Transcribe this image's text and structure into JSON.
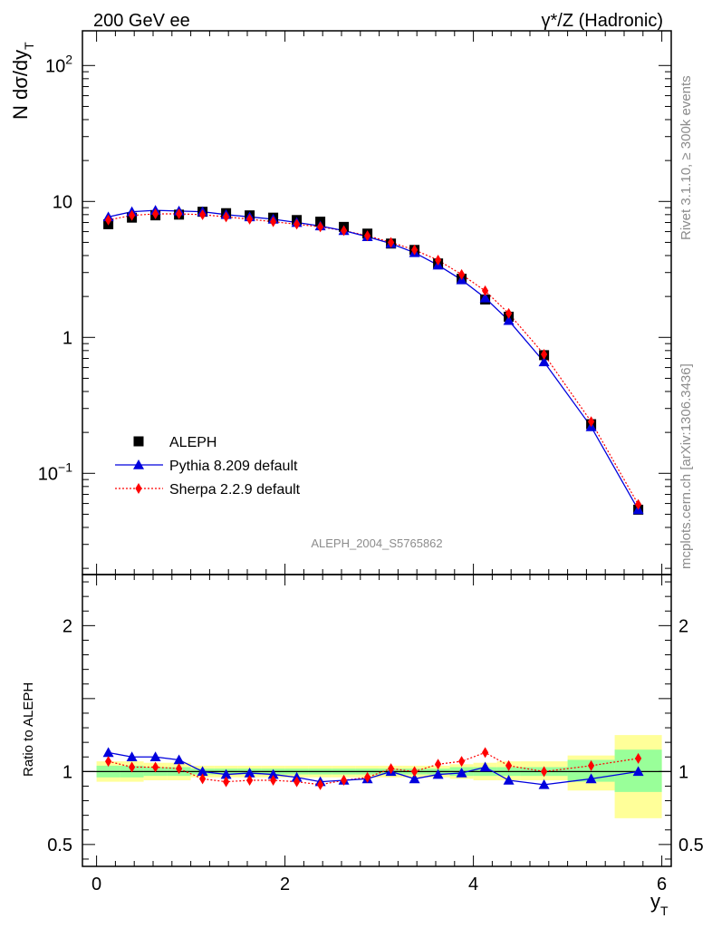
{
  "chart_data": {
    "type": "line",
    "title_left": "200 GeV ee",
    "title_right": "γ*/Z (Hadronic)",
    "ylabel_main": "N dσ/dy",
    "ylabel_main_sub": "T",
    "ylabel_ratio": "Ratio to ALEPH",
    "xlabel": "y",
    "xlabel_sub": "T",
    "watermark": "ALEPH_2004_S5765862",
    "side_text_top": "Rivet 3.1.10, ≥ 300k events",
    "side_text_bottom": "mcplots.cern.ch [arXiv:1306.3436]",
    "xlim": [
      -0.15,
      6.1
    ],
    "ylim_main": [
      0.018,
      180
    ],
    "ylim_ratio": [
      0.35,
      2.35
    ],
    "x_ticks": [
      "0",
      "2",
      "4",
      "6"
    ],
    "y_ticks_main": [
      {
        "value": 0.1,
        "base": "10",
        "exp": "−1"
      },
      {
        "value": 1,
        "base": "1",
        "exp": ""
      },
      {
        "value": 10,
        "base": "10",
        "exp": ""
      },
      {
        "value": 100,
        "base": "10",
        "exp": "2"
      }
    ],
    "y_ticks_ratio": [
      "0.5",
      "1",
      "2"
    ],
    "x": [
      0.125,
      0.375,
      0.625,
      0.875,
      1.125,
      1.375,
      1.625,
      1.875,
      2.125,
      2.375,
      2.625,
      2.875,
      3.125,
      3.375,
      3.625,
      3.875,
      4.125,
      4.375,
      4.75,
      5.25,
      5.75
    ],
    "bin_edges": [
      0,
      0.25,
      0.5,
      0.75,
      1.0,
      1.25,
      1.5,
      1.75,
      2.0,
      2.25,
      2.5,
      2.75,
      3.0,
      3.25,
      3.5,
      3.75,
      4.0,
      4.25,
      4.5,
      5.0,
      5.5,
      6.0
    ],
    "series": [
      {
        "name": "ALEPH",
        "color": "#000000",
        "marker": "square",
        "values": [
          6.8,
          7.6,
          7.9,
          8.0,
          8.4,
          8.2,
          7.9,
          7.6,
          7.3,
          7.1,
          6.5,
          5.8,
          4.9,
          4.4,
          3.5,
          2.7,
          1.9,
          1.42,
          0.74,
          0.23,
          0.054
        ]
      },
      {
        "name": "Pythia 8.209 default",
        "color": "#0000dd",
        "marker": "triangle",
        "values": [
          7.7,
          8.4,
          8.6,
          8.5,
          8.4,
          8.0,
          7.7,
          7.4,
          7.0,
          6.6,
          6.1,
          5.5,
          4.9,
          4.2,
          3.4,
          2.65,
          1.95,
          1.33,
          0.66,
          0.22,
          0.054
        ]
      },
      {
        "name": "Sherpa 2.2.9 default",
        "color": "#ff0000",
        "marker": "diamond",
        "values": [
          7.3,
          7.9,
          8.1,
          8.1,
          8.0,
          7.7,
          7.4,
          7.1,
          6.8,
          6.5,
          6.1,
          5.6,
          5.0,
          4.4,
          3.7,
          2.9,
          2.2,
          1.5,
          0.75,
          0.24,
          0.059
        ]
      }
    ],
    "ratios": [
      {
        "name": "Pythia 8.209 default",
        "values": [
          1.13,
          1.1,
          1.1,
          1.08,
          1.0,
          0.98,
          0.99,
          0.98,
          0.96,
          0.93,
          0.94,
          0.95,
          1.0,
          0.95,
          0.98,
          0.99,
          1.03,
          0.94,
          0.91,
          0.95,
          1.0
        ]
      },
      {
        "name": "Sherpa 2.2.9 default",
        "values": [
          1.07,
          1.03,
          1.03,
          1.02,
          0.95,
          0.93,
          0.94,
          0.94,
          0.93,
          0.91,
          0.94,
          0.96,
          1.02,
          1.0,
          1.05,
          1.07,
          1.13,
          1.04,
          1.0,
          1.04,
          1.09
        ]
      }
    ],
    "band_inner": [
      [
        0.96,
        1.04
      ],
      [
        0.96,
        1.04
      ],
      [
        0.97,
        1.03
      ],
      [
        0.97,
        1.03
      ],
      [
        0.98,
        1.02
      ],
      [
        0.98,
        1.02
      ],
      [
        0.98,
        1.02
      ],
      [
        0.98,
        1.02
      ],
      [
        0.98,
        1.02
      ],
      [
        0.98,
        1.02
      ],
      [
        0.98,
        1.02
      ],
      [
        0.98,
        1.02
      ],
      [
        0.98,
        1.02
      ],
      [
        0.98,
        1.02
      ],
      [
        0.98,
        1.02
      ],
      [
        0.97,
        1.03
      ],
      [
        0.97,
        1.03
      ],
      [
        0.97,
        1.03
      ],
      [
        0.97,
        1.03
      ],
      [
        0.93,
        1.08
      ],
      [
        0.86,
        1.15
      ]
    ],
    "band_outer": [
      [
        0.93,
        1.07
      ],
      [
        0.93,
        1.07
      ],
      [
        0.94,
        1.06
      ],
      [
        0.94,
        1.06
      ],
      [
        0.96,
        1.04
      ],
      [
        0.96,
        1.04
      ],
      [
        0.96,
        1.04
      ],
      [
        0.96,
        1.04
      ],
      [
        0.96,
        1.04
      ],
      [
        0.96,
        1.04
      ],
      [
        0.96,
        1.04
      ],
      [
        0.96,
        1.04
      ],
      [
        0.96,
        1.04
      ],
      [
        0.96,
        1.04
      ],
      [
        0.96,
        1.04
      ],
      [
        0.95,
        1.05
      ],
      [
        0.94,
        1.06
      ],
      [
        0.94,
        1.07
      ],
      [
        0.94,
        1.07
      ],
      [
        0.87,
        1.11
      ],
      [
        0.68,
        1.25
      ]
    ]
  }
}
